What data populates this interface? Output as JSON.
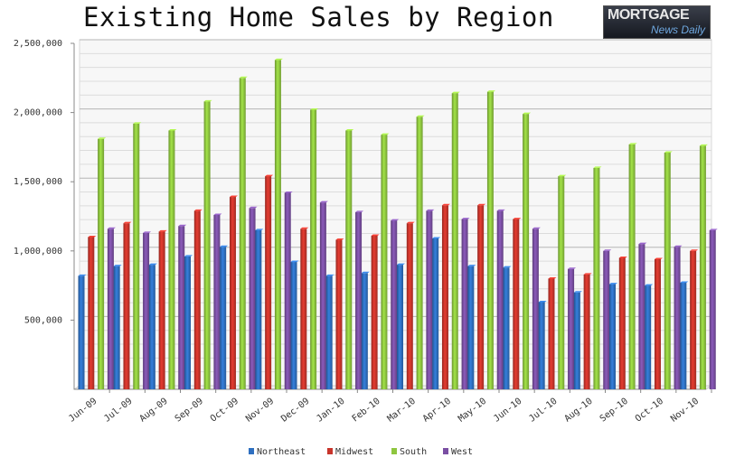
{
  "header": {
    "title": "Existing Home Sales by Region",
    "logo_line1": "MORTGAGE",
    "logo_line2": "News Daily"
  },
  "chart_data": {
    "type": "bar",
    "title": "Existing Home Sales by Region",
    "xlabel": "",
    "ylabel": "",
    "ylim": [
      0,
      2500000
    ],
    "yticks": [
      500000,
      1000000,
      1500000,
      2000000,
      2500000
    ],
    "ytick_labels": [
      "500,000",
      "1,000,000",
      "1,500,000",
      "2,000,000",
      "2,500,000"
    ],
    "grid": true,
    "legend_position": "bottom",
    "categories": [
      "Jun-09",
      "Jul-09",
      "Aug-09",
      "Sep-09",
      "Oct-09",
      "Nov-09",
      "Dec-09",
      "Jan-10",
      "Feb-10",
      "Mar-10",
      "Apr-10",
      "May-10",
      "Jun-10",
      "Jul-10",
      "Aug-10",
      "Sep-10",
      "Oct-10",
      "Nov-10"
    ],
    "series": [
      {
        "name": "Northeast",
        "color": "#2e6fc0",
        "values": [
          820000,
          890000,
          900000,
          960000,
          1030000,
          1150000,
          920000,
          820000,
          840000,
          900000,
          1090000,
          890000,
          880000,
          630000,
          700000,
          760000,
          750000,
          770000
        ]
      },
      {
        "name": "Midwest",
        "color": "#c8342b",
        "values": [
          1100000,
          1200000,
          1140000,
          1290000,
          1390000,
          1540000,
          1160000,
          1080000,
          1110000,
          1200000,
          1330000,
          1330000,
          1230000,
          800000,
          830000,
          950000,
          940000,
          1000000
        ]
      },
      {
        "name": "South",
        "color": "#8ec63f",
        "values": [
          1810000,
          1920000,
          1870000,
          2080000,
          2250000,
          2380000,
          2020000,
          1870000,
          1840000,
          1970000,
          2140000,
          2150000,
          1990000,
          1540000,
          1600000,
          1770000,
          1710000,
          1760000
        ]
      },
      {
        "name": "West",
        "color": "#7a4fa3",
        "values": [
          1160000,
          1130000,
          1180000,
          1260000,
          1310000,
          1420000,
          1350000,
          1280000,
          1220000,
          1290000,
          1230000,
          1290000,
          1160000,
          870000,
          1000000,
          1050000,
          1030000,
          1150000
        ]
      }
    ]
  }
}
